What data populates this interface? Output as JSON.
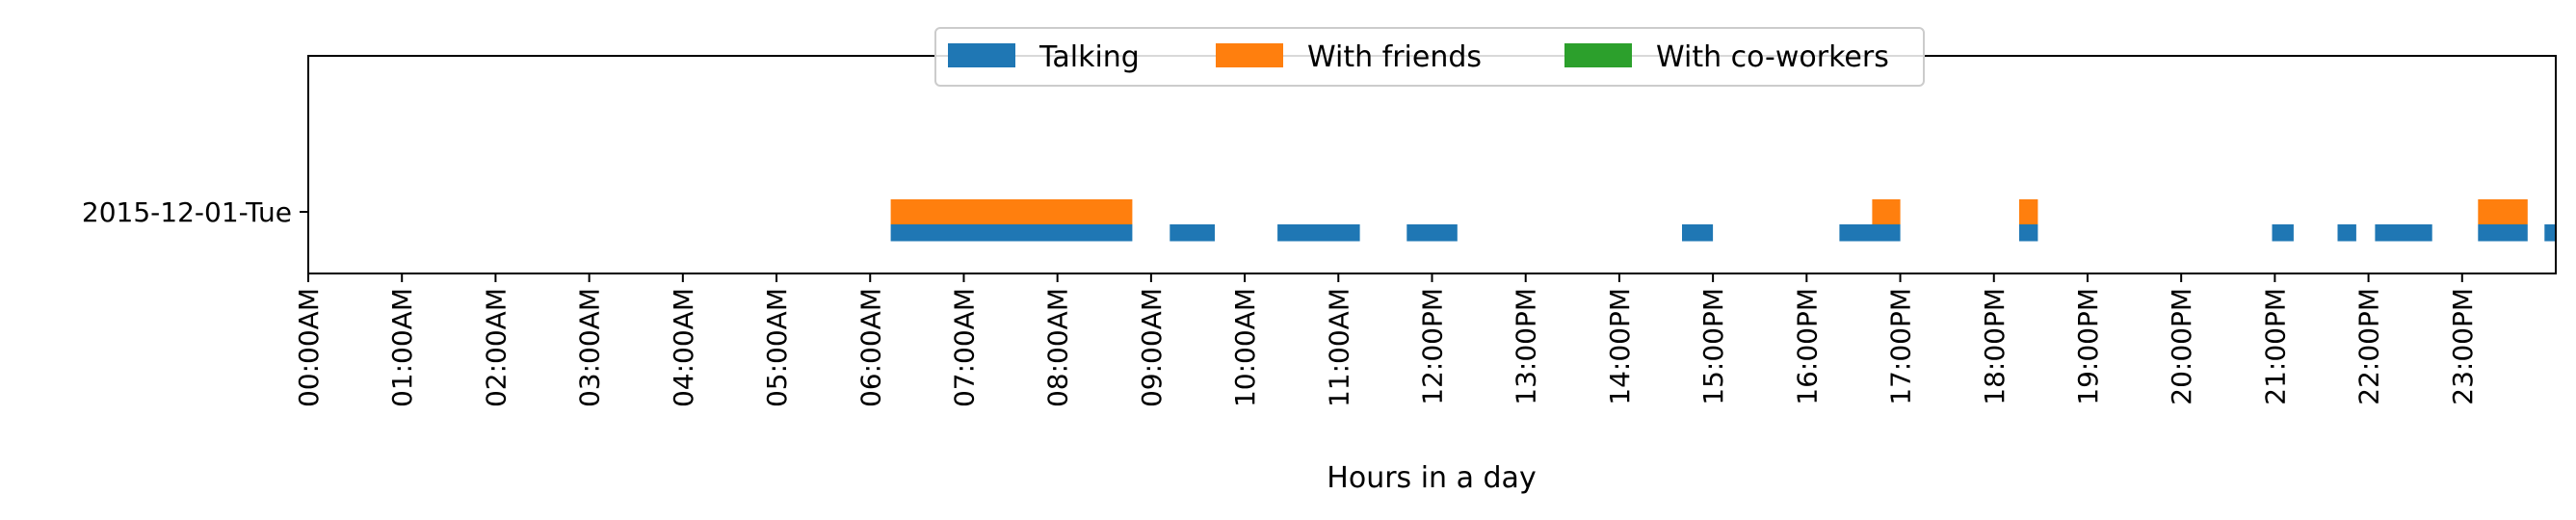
{
  "chart_data": {
    "type": "bar",
    "orientation": "horizontal-timeline",
    "title": "",
    "xlabel": "Hours in a day",
    "ylabel": "",
    "xlim": [
      0,
      24
    ],
    "x_ticks": [
      "00:00AM",
      "01:00AM",
      "02:00AM",
      "03:00AM",
      "04:00AM",
      "05:00AM",
      "06:00AM",
      "07:00AM",
      "08:00AM",
      "09:00AM",
      "10:00AM",
      "11:00AM",
      "12:00PM",
      "13:00PM",
      "14:00PM",
      "15:00PM",
      "16:00PM",
      "17:00PM",
      "18:00PM",
      "19:00PM",
      "20:00PM",
      "21:00PM",
      "22:00PM",
      "23:00PM"
    ],
    "categories": [
      "2015-12-01-Tue"
    ],
    "legend_position": "top-center",
    "series": [
      {
        "name": "Talking",
        "color": "#1f77b4",
        "intervals": [
          [
            6.22,
            8.8
          ],
          [
            9.2,
            9.68
          ],
          [
            10.35,
            11.23
          ],
          [
            11.73,
            12.27
          ],
          [
            14.67,
            15.0
          ],
          [
            16.35,
            17.0
          ],
          [
            18.27,
            18.47
          ],
          [
            20.97,
            21.2
          ],
          [
            21.67,
            21.87
          ],
          [
            22.07,
            22.68
          ],
          [
            23.17,
            23.7
          ],
          [
            23.88,
            24.0
          ]
        ]
      },
      {
        "name": "With friends",
        "color": "#ff7f0e",
        "intervals": [
          [
            6.22,
            8.8
          ],
          [
            16.7,
            17.0
          ],
          [
            18.27,
            18.47
          ],
          [
            23.17,
            23.7
          ]
        ]
      },
      {
        "name": "With co-workers",
        "color": "#2ca02c",
        "intervals": []
      }
    ]
  }
}
